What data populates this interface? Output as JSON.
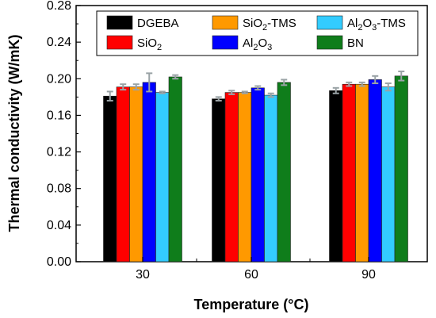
{
  "chart_data": {
    "type": "bar",
    "xlabel": "Temperature (°C)",
    "ylabel": "Thermal conductivity (W/mK)",
    "categories": [
      "30",
      "60",
      "90"
    ],
    "ylim": [
      0.0,
      0.28
    ],
    "yticks": [
      "0.00",
      "0.04",
      "0.08",
      "0.12",
      "0.16",
      "0.20",
      "0.24",
      "0.28"
    ],
    "ytick_values": [
      0.0,
      0.04,
      0.08,
      0.12,
      0.16,
      0.2,
      0.24,
      0.28
    ],
    "grid": false,
    "legend_position": "top",
    "series": [
      {
        "name": "DGEBA",
        "color": "#000000",
        "values": [
          0.181,
          0.178,
          0.187
        ],
        "errors": [
          0.005,
          0.002,
          0.003
        ]
      },
      {
        "name": "SiO2",
        "color": "#ff0000",
        "values": [
          0.191,
          0.185,
          0.194
        ],
        "errors": [
          0.003,
          0.002,
          0.002
        ]
      },
      {
        "name": "SiO2-TMS",
        "color": "#ff9900",
        "values": [
          0.191,
          0.185,
          0.194
        ],
        "errors": [
          0.003,
          0.001,
          0.002
        ]
      },
      {
        "name": "Al2O3",
        "color": "#0000ff",
        "values": [
          0.196,
          0.19,
          0.199
        ],
        "errors": [
          0.01,
          0.002,
          0.004
        ]
      },
      {
        "name": "Al2O3-TMS",
        "color": "#33ccff",
        "values": [
          0.185,
          0.182,
          0.191
        ],
        "errors": [
          0.001,
          0.002,
          0.004
        ]
      },
      {
        "name": "BN",
        "color": "#0f7d1b",
        "values": [
          0.202,
          0.196,
          0.203
        ],
        "errors": [
          0.002,
          0.003,
          0.005
        ]
      }
    ]
  }
}
